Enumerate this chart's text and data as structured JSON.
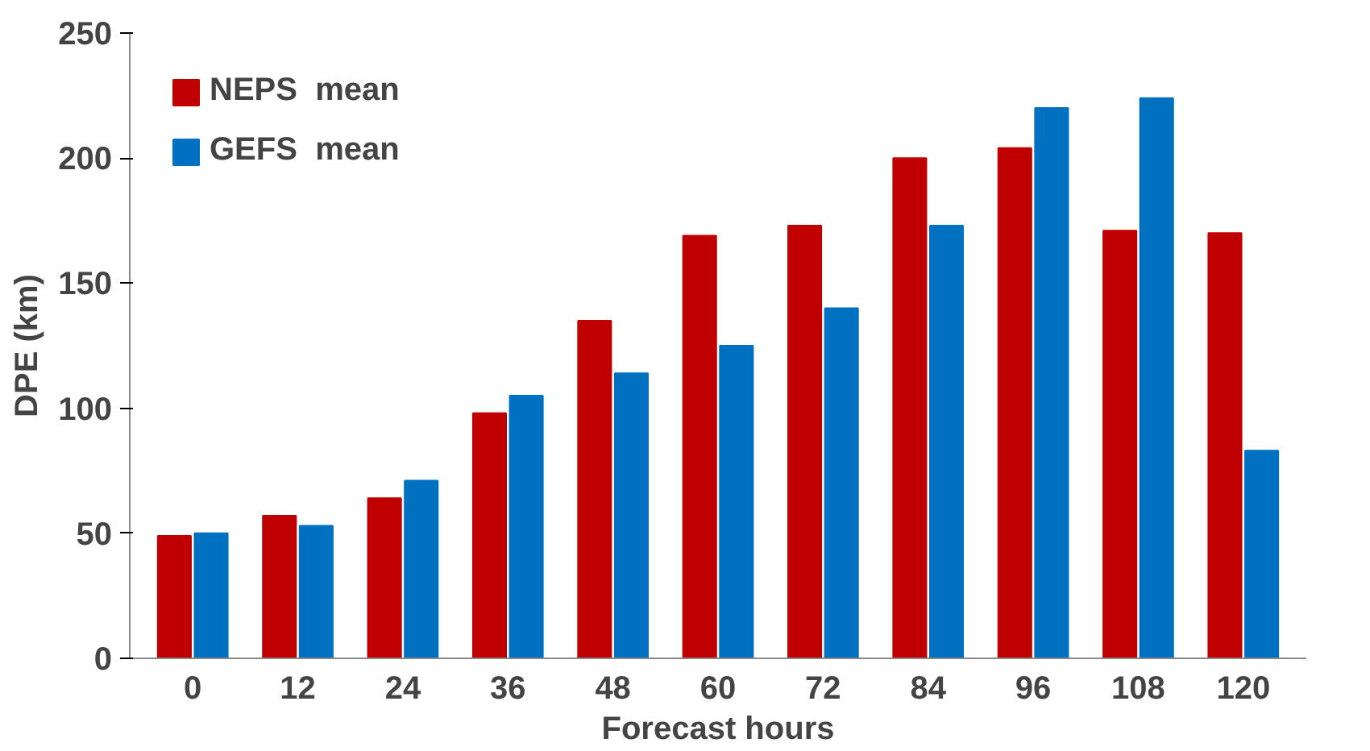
{
  "chart_data": {
    "type": "bar",
    "xlabel": "Forecast hours",
    "ylabel": "DPE (km)",
    "categories": [
      "0",
      "12",
      "24",
      "36",
      "48",
      "60",
      "72",
      "84",
      "96",
      "108",
      "120"
    ],
    "series": [
      {
        "name": "NEPS  mean",
        "color": "#c00000",
        "values": [
          49,
          57,
          64,
          98,
          135,
          169,
          173,
          200,
          204,
          171,
          170
        ]
      },
      {
        "name": "GEFS  mean",
        "color": "#0070c0",
        "values": [
          50,
          53,
          71,
          105,
          114,
          125,
          140,
          173,
          220,
          224,
          83
        ]
      }
    ],
    "ylim": [
      0,
      250
    ],
    "yticks": [
      0,
      50,
      100,
      150,
      200,
      250
    ],
    "grid": false,
    "legend": "top left"
  }
}
